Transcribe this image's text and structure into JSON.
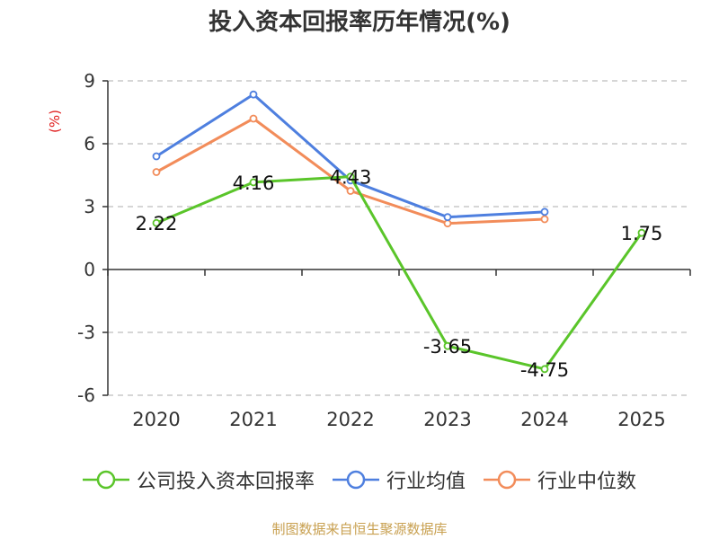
{
  "chart_data": {
    "type": "line",
    "title": "投入资本回报率历年情况(%)",
    "ylabel": "(%)",
    "xlabel": "",
    "categories": [
      "2020",
      "2021",
      "2022",
      "2023",
      "2024",
      "2025"
    ],
    "ylim": [
      -6,
      9
    ],
    "yticks": [
      "9",
      "6",
      "3",
      "0",
      "-3",
      "-6"
    ],
    "grid": true,
    "legend_position": "bottom",
    "series": [
      {
        "name": "公司投入资本回报率",
        "color": "#5ac52a",
        "values": [
          2.22,
          4.16,
          4.43,
          -3.65,
          -4.75,
          1.75
        ],
        "labels": [
          "2.22",
          "4.16",
          "4.43",
          "-3.65",
          "-4.75",
          "1.75"
        ]
      },
      {
        "name": "行业均值",
        "color": "#4e7fdf",
        "values": [
          5.4,
          8.35,
          4.25,
          2.5,
          2.75,
          null
        ]
      },
      {
        "name": "行业中位数",
        "color": "#f28c5a",
        "values": [
          4.65,
          7.2,
          3.75,
          2.2,
          2.4,
          null
        ]
      }
    ]
  },
  "source": "制图数据来自恒生聚源数据库"
}
